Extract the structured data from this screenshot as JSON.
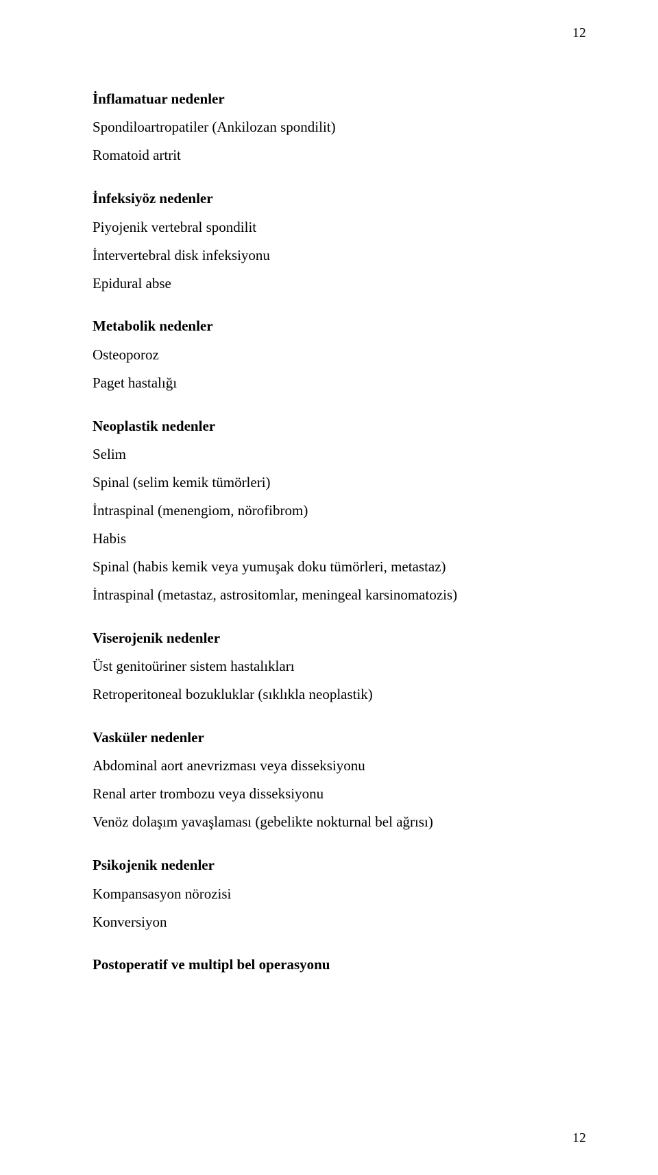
{
  "page_number_top": "12",
  "page_number_bottom": "12",
  "sections": {
    "s0": {
      "heading": "İnflamatuar nedenler",
      "lines": [
        "Spondiloartropatiler (Ankilozan spondilit)",
        "Romatoid artrit"
      ]
    },
    "s1": {
      "heading": "İnfeksiyöz nedenler",
      "lines": [
        "Piyojenik vertebral spondilit",
        "İntervertebral disk infeksiyonu",
        "Epidural abse"
      ]
    },
    "s2": {
      "heading": "Metabolik nedenler",
      "lines": [
        "Osteoporoz",
        "Paget hastalığı"
      ]
    },
    "s3": {
      "heading": "Neoplastik nedenler",
      "lines": [
        "Selim",
        "Spinal (selim kemik tümörleri)",
        "İntraspinal (menengiom, nörofibrom)",
        "Habis",
        "Spinal (habis kemik veya yumuşak doku tümörleri, metastaz)",
        "İntraspinal (metastaz, astrositomlar, meningeal karsinomatozis)"
      ]
    },
    "s4": {
      "heading": "Viserojenik nedenler",
      "lines": [
        "Üst genitoüriner sistem hastalıkları",
        "Retroperitoneal bozukluklar (sıklıkla neoplastik)"
      ]
    },
    "s5": {
      "heading": "Vasküler nedenler",
      "lines": [
        "Abdominal aort anevrizması veya disseksiyonu",
        "Renal arter trombozu veya disseksiyonu",
        "Venöz dolaşım yavaşlaması (gebelikte nokturnal bel ağrısı)"
      ]
    },
    "s6": {
      "heading": "Psikojenik nedenler",
      "lines": [
        "Kompansasyon nörozisi",
        "Konversiyon"
      ]
    },
    "s7": {
      "heading": "Postoperatif ve multipl bel operasyonu",
      "lines": []
    }
  }
}
